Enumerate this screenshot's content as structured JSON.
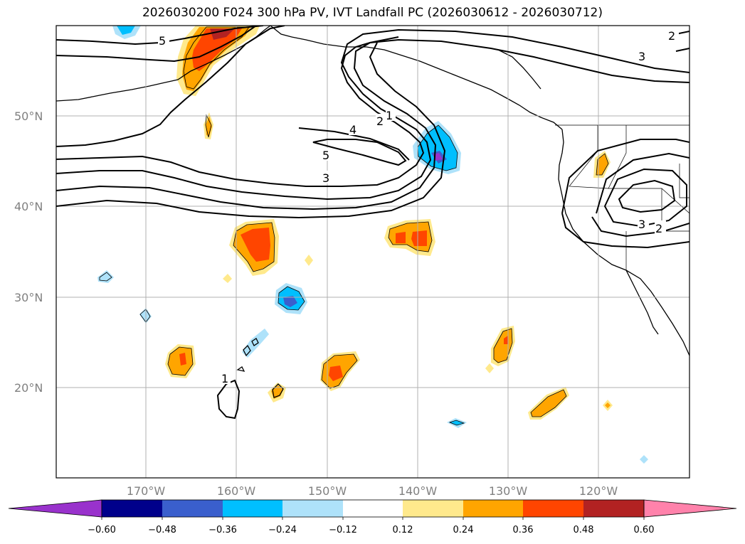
{
  "title": "2026030200 F024 300 hPa PV, IVT Landfall PC (2026030612 - 2026030712)",
  "axes": {
    "lat_ticks": [
      "50°N",
      "40°N",
      "30°N",
      "20°N"
    ],
    "lon_ticks": [
      "170°W",
      "160°W",
      "150°W",
      "140°W",
      "130°W",
      "120°W"
    ]
  },
  "colorbar": {
    "ticks": [
      "−0.60",
      "−0.48",
      "−0.36",
      "−0.24",
      "−0.12",
      "0.12",
      "0.24",
      "0.36",
      "0.48",
      "0.60"
    ],
    "colors": [
      "#9932cc",
      "#00008b",
      "#3a5fcd",
      "#00bfff",
      "#aee2fa",
      "#ffffff",
      "#ffe98c",
      "#ffa500",
      "#ff4500",
      "#b22222",
      "#ff82ab"
    ],
    "under_color": "#9932cc",
    "over_color": "#ff82ab"
  },
  "contour_labels": [
    "5",
    "1",
    "2",
    "4",
    "5",
    "3",
    "3",
    "3",
    "2",
    "1",
    "2"
  ],
  "palette": {
    "pos_light": "#ffe98c",
    "pos_mid": "#ffa500",
    "pos_high": "#ff4500",
    "neg_light": "#aee2fa",
    "neg_mid": "#00bfff",
    "neg_high": "#3a5fcd",
    "neg_max": "#9932cc"
  }
}
